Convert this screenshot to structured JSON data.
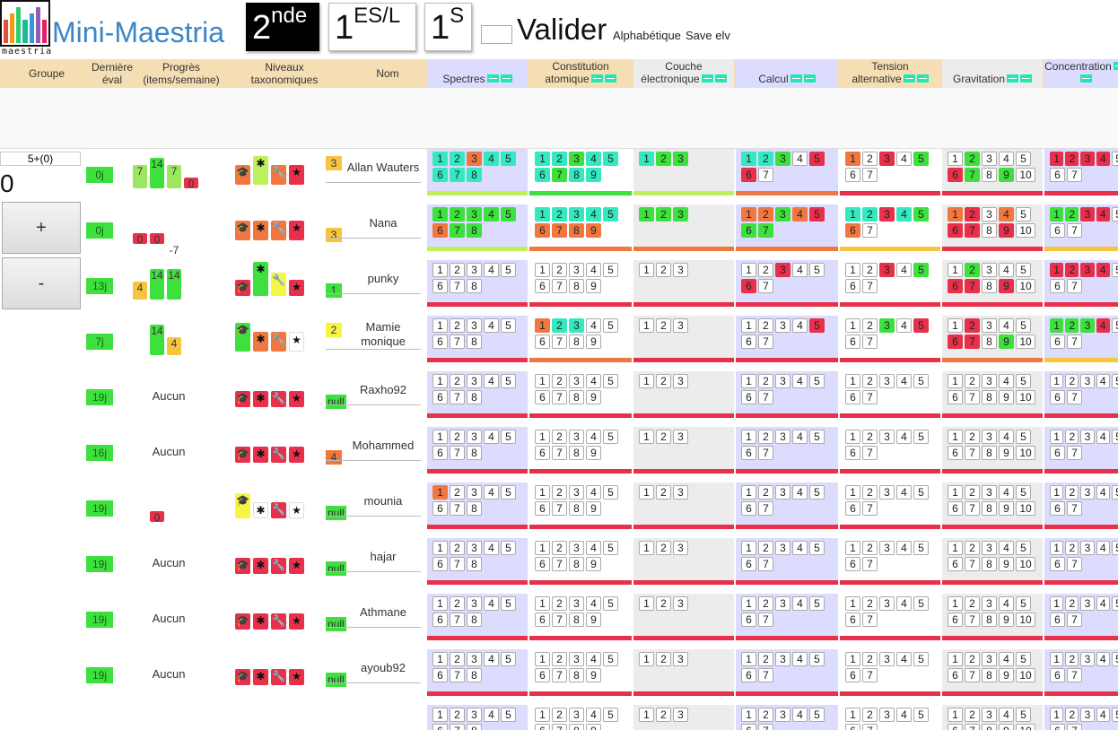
{
  "app": {
    "title": "Mini-Maestria",
    "logo_word": "maestria",
    "logo_colors": [
      "#e84c3d",
      "#f39c12",
      "#2ecc71",
      "#1abc9c",
      "#3498db",
      "#9b59b6",
      "#e91e63"
    ]
  },
  "levels": [
    {
      "base": "2",
      "sup": "nde",
      "active": true
    },
    {
      "base": "1",
      "sup": "ES/L",
      "active": false
    },
    {
      "base": "1",
      "sup": "S",
      "active": false
    }
  ],
  "toolbar": {
    "valider": "Valider",
    "alphabetique": "Alphabétique",
    "save": "Save elv"
  },
  "headers": {
    "groupe": "Groupe",
    "derniere_l1": "Dernière",
    "derniere_l2": "éval",
    "progres_l1": "Progrès",
    "progres_l2": "(items/semaine)",
    "niveaux_l1": "Niveaux",
    "niveaux_l2": "taxonomiques",
    "nom": "Nom"
  },
  "competences": [
    {
      "label_l1": "",
      "label_l2": "Spectres",
      "bg": "lav",
      "count": 8
    },
    {
      "label_l1": "Constitution",
      "label_l2": "atomique",
      "bg": "none",
      "count": 9
    },
    {
      "label_l1": "Couche",
      "label_l2": "électronique",
      "bg": "gray",
      "count": 3
    },
    {
      "label_l1": "",
      "label_l2": "Calcul",
      "bg": "lav",
      "count": 7
    },
    {
      "label_l1": "Tension",
      "label_l2": "alternative",
      "bg": "none",
      "count": 7
    },
    {
      "label_l1": "",
      "label_l2": "Gravitation",
      "bg": "gray",
      "count": 10
    },
    {
      "label_l1": "",
      "label_l2": "Concentration",
      "bg": "lav",
      "count": 7
    }
  ],
  "controls": {
    "counter": "5+(0)",
    "zero": "0",
    "plus": "+",
    "minus": "-"
  },
  "colors": {
    "teal": "#34e8c0",
    "green": "#3ee03e",
    "orange": "#f07840",
    "red": "#e8304a",
    "yellow": "#f5f545",
    "gold": "#f5c542",
    "lime": "#bdf05a",
    "grey": "#e6e6e6"
  },
  "rows": [
    {
      "name": "Allan Wauters",
      "days": "0j",
      "score": "3",
      "score_color": "#f5c542",
      "progress": {
        "none": "",
        "bars": [
          {
            "v": "7",
            "h": 26,
            "c": "#9be860"
          },
          {
            "v": "14",
            "h": 34,
            "c": "#3ee03e"
          },
          {
            "v": "7",
            "h": 26,
            "c": "#9be860"
          },
          {
            "v": "0",
            "h": 12,
            "c": "#e8304a"
          }
        ]
      },
      "taxo": [
        "#f07840",
        "#bdf05a",
        "#f07840",
        "#e8304a"
      ],
      "taxo_h": [
        18,
        28,
        18,
        18
      ],
      "comps": [
        {
          "cells": [
            "t",
            "t",
            "o",
            "t",
            "t",
            "t",
            "t",
            "t"
          ],
          "bar": "#bdf05a",
          "bg": "#dcdcff"
        },
        {
          "cells": [
            "t",
            "t",
            "g",
            "t",
            "t",
            "t",
            "g",
            "t",
            "t"
          ],
          "bar": "#3ee03e",
          "bg": "#fff"
        },
        {
          "cells": [
            "t",
            "g",
            "g"
          ],
          "bar": "#bdf05a",
          "bg": "#ececec"
        },
        {
          "cells": [
            "t",
            "t",
            "g",
            "w",
            "r",
            "r",
            "w"
          ],
          "bar": "#f07840",
          "bg": "#dcdcff"
        },
        {
          "cells": [
            "o",
            "w",
            "r",
            "w",
            "g",
            "w",
            "w"
          ],
          "bar": "#e8304a",
          "bg": "#fff"
        },
        {
          "cells": [
            "w",
            "g",
            "w",
            "w",
            "w",
            "r",
            "g",
            "w",
            "g",
            "w"
          ],
          "bar": "#e8304a",
          "bg": "#ececec"
        },
        {
          "cells": [
            "r",
            "r",
            "r",
            "r",
            "w",
            "w",
            "w"
          ],
          "bar": "#e8304a",
          "bg": "#dcdcff"
        }
      ]
    },
    {
      "name": "Nana",
      "days": "0j",
      "score": "3",
      "score_color": "#f5c542",
      "progress": {
        "none": "",
        "bars": [
          {
            "v": "0",
            "h": 12,
            "c": "#e8304a"
          },
          {
            "v": "0",
            "h": 12,
            "c": "#e8304a"
          },
          {
            "v": "-7",
            "h": 0,
            "c": "transparent"
          }
        ]
      },
      "taxo": [
        "#f07840",
        "#f07840",
        "#f07840",
        "#e8304a"
      ],
      "taxo_h": [
        18,
        18,
        18,
        18
      ],
      "comps": [
        {
          "cells": [
            "g",
            "g",
            "g",
            "g",
            "g",
            "o",
            "g",
            "g"
          ],
          "bar": "#bdf05a",
          "bg": "#dcdcff"
        },
        {
          "cells": [
            "t",
            "t",
            "t",
            "t",
            "t",
            "o",
            "o",
            "o",
            "o"
          ],
          "bar": "#f07840",
          "bg": "#fff"
        },
        {
          "cells": [
            "g",
            "g",
            "g"
          ],
          "bar": "#f07840",
          "bg": "#ececec"
        },
        {
          "cells": [
            "o",
            "o",
            "g",
            "o",
            "r",
            "g",
            "g"
          ],
          "bar": "#f07840",
          "bg": "#dcdcff"
        },
        {
          "cells": [
            "t",
            "t",
            "r",
            "t",
            "g",
            "o",
            "w"
          ],
          "bar": "#f5c542",
          "bg": "#fff"
        },
        {
          "cells": [
            "o",
            "r",
            "w",
            "o",
            "w",
            "r",
            "r",
            "w",
            "r",
            "w"
          ],
          "bar": "#e8304a",
          "bg": "#ececec"
        },
        {
          "cells": [
            "g",
            "g",
            "r",
            "r",
            "w",
            "w",
            "w"
          ],
          "bar": "#f5c542",
          "bg": "#dcdcff"
        }
      ]
    },
    {
      "name": "punky",
      "days": "13j",
      "score": "1",
      "score_color": "#3ee03e",
      "progress": {
        "none": "",
        "bars": [
          {
            "v": "4",
            "h": 20,
            "c": "#f5c542"
          },
          {
            "v": "14",
            "h": 34,
            "c": "#3ee03e"
          },
          {
            "v": "14",
            "h": 34,
            "c": "#3ee03e"
          }
        ]
      },
      "taxo": [
        "#e8304a",
        "#3ee03e",
        "#f5f545",
        "#e8304a"
      ],
      "taxo_h": [
        14,
        34,
        22,
        14
      ],
      "comps": [
        {
          "cells": [
            "w",
            "w",
            "w",
            "w",
            "w",
            "w",
            "w",
            "w"
          ],
          "bar": "#e8304a",
          "bg": "#dcdcff"
        },
        {
          "cells": [
            "w",
            "w",
            "w",
            "w",
            "w",
            "w",
            "w",
            "w",
            "w"
          ],
          "bar": "#e8304a",
          "bg": "#fff"
        },
        {
          "cells": [
            "w",
            "w",
            "w"
          ],
          "bar": "#e8304a",
          "bg": "#ececec"
        },
        {
          "cells": [
            "w",
            "w",
            "r",
            "w",
            "w",
            "r",
            "w"
          ],
          "bar": "#e8304a",
          "bg": "#dcdcff"
        },
        {
          "cells": [
            "w",
            "w",
            "r",
            "w",
            "g",
            "w",
            "w"
          ],
          "bar": "#e8304a",
          "bg": "#fff"
        },
        {
          "cells": [
            "w",
            "g",
            "w",
            "w",
            "w",
            "r",
            "r",
            "w",
            "r",
            "w"
          ],
          "bar": "#e8304a",
          "bg": "#ececec"
        },
        {
          "cells": [
            "r",
            "r",
            "r",
            "r",
            "w",
            "w",
            "w"
          ],
          "bar": "#e8304a",
          "bg": "#dcdcff"
        }
      ]
    },
    {
      "name": "Mamie monique",
      "days": "7j",
      "score": "2",
      "score_color": "#f5f545",
      "progress": {
        "none": "",
        "bars": [
          {
            "v": "",
            "h": 0,
            "c": "transparent"
          },
          {
            "v": "14",
            "h": 34,
            "c": "#3ee03e"
          },
          {
            "v": "4",
            "h": 20,
            "c": "#f5c542"
          }
        ]
      },
      "taxo": [
        "#3ee03e",
        "#f07840",
        "#f07840",
        "#fff"
      ],
      "taxo_h": [
        28,
        18,
        18,
        18
      ],
      "comps": [
        {
          "cells": [
            "w",
            "w",
            "w",
            "w",
            "w",
            "w",
            "w",
            "w"
          ],
          "bar": "#e8304a",
          "bg": "#dcdcff"
        },
        {
          "cells": [
            "o",
            "t",
            "t",
            "w",
            "w",
            "w",
            "w",
            "w",
            "w"
          ],
          "bar": "#f07840",
          "bg": "#fff"
        },
        {
          "cells": [
            "w",
            "w",
            "w"
          ],
          "bar": "#e8304a",
          "bg": "#ececec"
        },
        {
          "cells": [
            "w",
            "w",
            "w",
            "w",
            "r",
            "w",
            "w"
          ],
          "bar": "#e8304a",
          "bg": "#dcdcff"
        },
        {
          "cells": [
            "w",
            "w",
            "g",
            "w",
            "r",
            "w",
            "w"
          ],
          "bar": "#e8304a",
          "bg": "#fff"
        },
        {
          "cells": [
            "w",
            "r",
            "w",
            "w",
            "w",
            "r",
            "r",
            "w",
            "g",
            "w"
          ],
          "bar": "#f07840",
          "bg": "#ececec"
        },
        {
          "cells": [
            "g",
            "g",
            "g",
            "r",
            "w",
            "w",
            "w"
          ],
          "bar": "#f5c542",
          "bg": "#dcdcff"
        }
      ]
    },
    {
      "name": "Raxho92",
      "days": "19j",
      "score": "null",
      "score_color": "#3ee03e",
      "progress": {
        "none": "Aucun",
        "bars": []
      },
      "taxo": [
        "#e8304a",
        "#e8304a",
        "#e8304a",
        "#e8304a"
      ],
      "taxo_h": [
        14,
        14,
        14,
        14
      ],
      "comps": "blank"
    },
    {
      "name": "Mohammed",
      "days": "16j",
      "score": "4",
      "score_color": "#f07840",
      "progress": {
        "none": "Aucun",
        "bars": []
      },
      "taxo": [
        "#e8304a",
        "#e8304a",
        "#e8304a",
        "#e8304a"
      ],
      "taxo_h": [
        14,
        14,
        14,
        14
      ],
      "comps": "blank"
    },
    {
      "name": "mounia",
      "days": "19j",
      "score": "null",
      "score_color": "#3ee03e",
      "progress": {
        "none": "",
        "bars": [
          {
            "v": "",
            "h": 0,
            "c": "transparent"
          },
          {
            "v": "0",
            "h": 12,
            "c": "#e8304a"
          }
        ]
      },
      "taxo": [
        "#f5f545",
        "#fff",
        "#e8304a",
        "#fff"
      ],
      "taxo_h": [
        24,
        14,
        14,
        14
      ],
      "comps": "blank-o"
    },
    {
      "name": "hajar",
      "days": "19j",
      "score": "null",
      "score_color": "#3ee03e",
      "progress": {
        "none": "Aucun",
        "bars": []
      },
      "taxo": [
        "#e8304a",
        "#e8304a",
        "#e8304a",
        "#e8304a"
      ],
      "taxo_h": [
        14,
        14,
        14,
        14
      ],
      "comps": "blank"
    },
    {
      "name": "Athmane",
      "days": "19j",
      "score": "null",
      "score_color": "#3ee03e",
      "progress": {
        "none": "Aucun",
        "bars": []
      },
      "taxo": [
        "#e8304a",
        "#e8304a",
        "#e8304a",
        "#e8304a"
      ],
      "taxo_h": [
        14,
        14,
        14,
        14
      ],
      "comps": "blank"
    },
    {
      "name": "ayoub92",
      "days": "19j",
      "score": "null",
      "score_color": "#3ee03e",
      "progress": {
        "none": "Aucun",
        "bars": []
      },
      "taxo": [
        "#e8304a",
        "#e8304a",
        "#e8304a",
        "#e8304a"
      ],
      "taxo_h": [
        14,
        14,
        14,
        14
      ],
      "comps": "blank"
    },
    {
      "name": "",
      "days": "",
      "score": "",
      "score_color": "#fff",
      "progress": {
        "none": "",
        "bars": []
      },
      "taxo": [],
      "taxo_h": [],
      "comps": "blank"
    }
  ],
  "taxo_icons": [
    "graduation-cap-icon",
    "asterisk-icon",
    "wrench-icon",
    "star-icon"
  ]
}
